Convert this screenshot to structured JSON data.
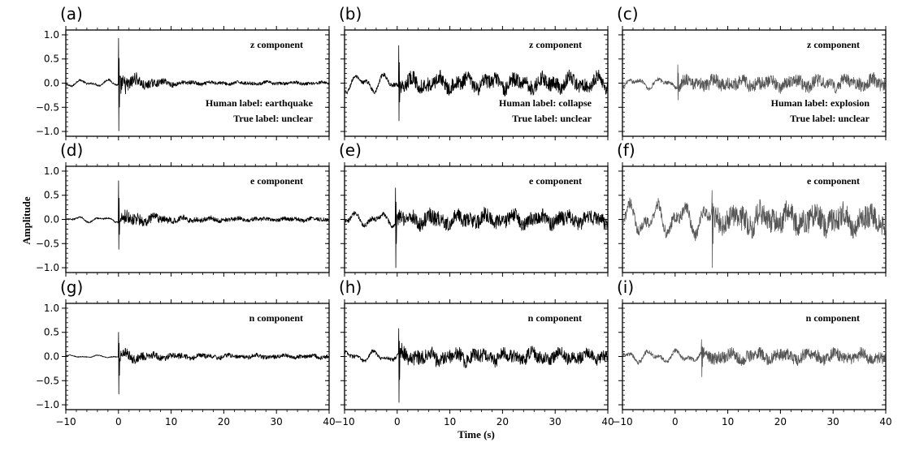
{
  "chart_data": {
    "type": "line",
    "xlabel": "Time (s)",
    "ylabel": "Amplitude",
    "xlim": [
      -10,
      40
    ],
    "ylim": [
      -1.1,
      1.1
    ],
    "x_ticks": [
      -10,
      0,
      10,
      20,
      30,
      40
    ],
    "x_tick_labels": [
      "−10",
      "0",
      "10",
      "20",
      "30",
      "40"
    ],
    "y_ticks": [
      1.0,
      0.5,
      0.0,
      -0.5,
      -1.0
    ],
    "y_tick_labels": [
      "1.0",
      "0.5",
      "0.0",
      "−0.5",
      "−1.0"
    ],
    "grid": false,
    "panels": [
      {
        "label": "(a)",
        "component": "z  component",
        "human_label": "Human label: earthquake",
        "true_label": "True label: unclear",
        "color": "#000000",
        "series": {
          "pre_amp": 0.07,
          "peak_max": 0.93,
          "peak_min": -0.99,
          "peak_t": 0.0,
          "coda_amp": 0.3,
          "coda_decay": 0.22,
          "tail_amp": 0.04,
          "hf": 0.5
        }
      },
      {
        "label": "(b)",
        "component": "z  component",
        "human_label": "Human label: collapse",
        "true_label": "True label: unclear",
        "color": "#000000",
        "series": {
          "pre_amp": 0.2,
          "peak_max": 0.78,
          "peak_min": -0.78,
          "peak_t": 0.3,
          "coda_amp": 0.22,
          "coda_decay": 0.02,
          "tail_amp": 0.22,
          "hf": 0.35
        }
      },
      {
        "label": "(c)",
        "component": "z  component",
        "human_label": "Human label: explosion",
        "true_label": "True label: unclear",
        "color": "#555555",
        "series": {
          "pre_amp": 0.12,
          "peak_max": 0.38,
          "peak_min": -0.35,
          "peak_t": 0.5,
          "coda_amp": 0.16,
          "coda_decay": 0.0,
          "tail_amp": 0.2,
          "hf": 0.55
        }
      },
      {
        "label": "(d)",
        "component": "e  component",
        "human_label": "",
        "true_label": "",
        "color": "#000000",
        "series": {
          "pre_amp": 0.06,
          "peak_max": 0.8,
          "peak_min": -0.62,
          "peak_t": 0.0,
          "coda_amp": 0.22,
          "coda_decay": 0.15,
          "tail_amp": 0.05,
          "hf": 0.5
        }
      },
      {
        "label": "(e)",
        "component": "e  component",
        "human_label": "",
        "true_label": "",
        "color": "#000000",
        "series": {
          "pre_amp": 0.15,
          "peak_max": 0.65,
          "peak_min": -1.0,
          "peak_t": -0.3,
          "coda_amp": 0.2,
          "coda_decay": 0.02,
          "tail_amp": 0.15,
          "hf": 0.55
        }
      },
      {
        "label": "(f)",
        "component": "e  component",
        "human_label": "",
        "true_label": "",
        "color": "#555555",
        "series": {
          "pre_amp": 0.35,
          "peak_max": 0.6,
          "peak_min": -1.0,
          "peak_t": 7.0,
          "coda_amp": 0.3,
          "coda_decay": 0.0,
          "tail_amp": 0.3,
          "hf": 0.55
        }
      },
      {
        "label": "(g)",
        "component": "n  component",
        "human_label": "",
        "true_label": "",
        "color": "#000000",
        "series": {
          "pre_amp": 0.03,
          "peak_max": 0.5,
          "peak_min": -0.78,
          "peak_t": 0.0,
          "coda_amp": 0.15,
          "coda_decay": 0.14,
          "tail_amp": 0.05,
          "hf": 0.5
        }
      },
      {
        "label": "(h)",
        "component": "n  component",
        "human_label": "",
        "true_label": "",
        "color": "#000000",
        "series": {
          "pre_amp": 0.12,
          "peak_max": 0.58,
          "peak_min": -0.95,
          "peak_t": 0.3,
          "coda_amp": 0.2,
          "coda_decay": 0.03,
          "tail_amp": 0.13,
          "hf": 0.5
        }
      },
      {
        "label": "(i)",
        "component": "n  component",
        "human_label": "",
        "true_label": "",
        "color": "#555555",
        "series": {
          "pre_amp": 0.13,
          "peak_max": 0.35,
          "peak_min": -0.42,
          "peak_t": 5.0,
          "coda_amp": 0.15,
          "coda_decay": 0.0,
          "tail_amp": 0.15,
          "hf": 0.55
        }
      }
    ]
  }
}
